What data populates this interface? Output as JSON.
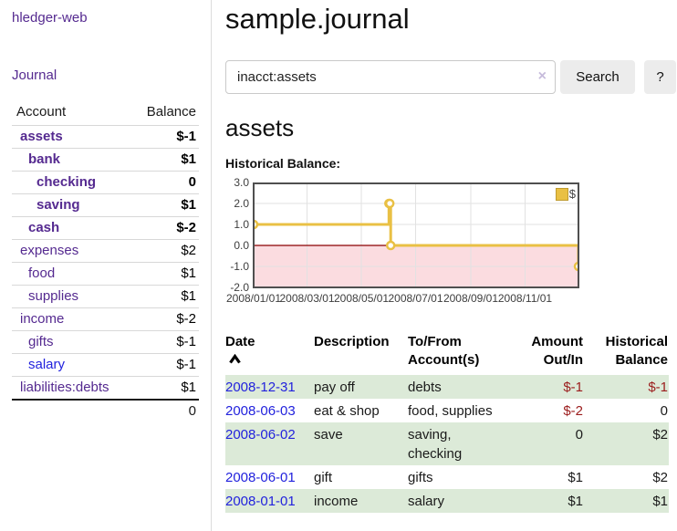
{
  "app": {
    "brand": "hledger-web"
  },
  "sidebar": {
    "nav": {
      "journal": "Journal"
    },
    "columns": {
      "account": "Account",
      "balance": "Balance"
    },
    "accounts": [
      {
        "name": "assets",
        "balance": "$-1",
        "neg": "strong"
      },
      {
        "name": "bank",
        "balance": "$1",
        "neg": ""
      },
      {
        "name": "checking",
        "balance": "0",
        "neg": ""
      },
      {
        "name": "saving",
        "balance": "$1",
        "neg": ""
      },
      {
        "name": "cash",
        "balance": "$-2",
        "neg": "strong"
      },
      {
        "name": "expenses",
        "balance": "$2",
        "neg": ""
      },
      {
        "name": "food",
        "balance": "$1",
        "neg": ""
      },
      {
        "name": "supplies",
        "balance": "$1",
        "neg": ""
      },
      {
        "name": "income",
        "balance": "$-2",
        "neg": "soft"
      },
      {
        "name": "gifts",
        "balance": "$-1",
        "neg": "soft"
      },
      {
        "name": "salary",
        "balance": "$-1",
        "neg": "soft"
      },
      {
        "name": "liabilities:debts",
        "balance": "$1",
        "neg": ""
      }
    ],
    "total": "0"
  },
  "header": {
    "title": "sample.journal"
  },
  "search": {
    "value": "inacct:assets",
    "clear_icon": "×",
    "button_label": "Search",
    "help_label": "?"
  },
  "account_page": {
    "heading": "assets",
    "chart_title": "Historical Balance:"
  },
  "chart_data": {
    "type": "line",
    "title": "Historical Balance:",
    "legend": [
      {
        "label": "$",
        "color": "#e9c044"
      }
    ],
    "legend_position": "top-right",
    "grid": true,
    "y_ticks": [
      "3.0",
      "2.0",
      "1.0",
      "0.0",
      "-1.0",
      "-2.0"
    ],
    "ylim": [
      -2,
      3
    ],
    "x_ticks": [
      "2008/01/01",
      "2008/03/01",
      "2008/05/01",
      "2008/07/01",
      "2008/09/01",
      "2008/11/01"
    ],
    "x_tick_days": [
      0,
      60,
      121,
      182,
      244,
      305
    ],
    "x_range_days": 365,
    "negative_fill": "#fbdce0",
    "zero_line_color": "#8b0000",
    "series": [
      {
        "name": "$",
        "color": "#e9c044",
        "step": true,
        "points": [
          {
            "date": "2008-01-01",
            "day": 0,
            "value": 1
          },
          {
            "date": "2008-06-01",
            "day": 152,
            "value": 2
          },
          {
            "date": "2008-06-02",
            "day": 153,
            "value": 2
          },
          {
            "date": "2008-06-03",
            "day": 154,
            "value": 0
          },
          {
            "date": "2008-12-31",
            "day": 365,
            "value": -1
          }
        ]
      }
    ]
  },
  "register": {
    "columns": [
      {
        "l1": "Date",
        "l2": ""
      },
      {
        "l1": "Description",
        "l2": ""
      },
      {
        "l1": "To/From",
        "l2": "Account(s)"
      },
      {
        "l1": "Amount",
        "l2": "Out/In"
      },
      {
        "l1": "Historical",
        "l2": "Balance"
      }
    ],
    "rows": [
      {
        "date": "2008-12-31",
        "description": "pay off",
        "accounts": "debts",
        "amount": "$-1",
        "amount_neg": "strong",
        "balance": "$-1",
        "balance_neg": "strong"
      },
      {
        "date": "2008-06-03",
        "description": "eat & shop",
        "accounts": "food, supplies",
        "amount": "$-2",
        "amount_neg": "strong",
        "balance": "0",
        "balance_neg": ""
      },
      {
        "date": "2008-06-02",
        "description": "save",
        "accounts": "saving,\nchecking",
        "amount": "0",
        "amount_neg": "",
        "balance": "$2",
        "balance_neg": ""
      },
      {
        "date": "2008-06-01",
        "description": "gift",
        "accounts": "gifts",
        "amount": "$1",
        "amount_neg": "",
        "balance": "$2",
        "balance_neg": ""
      },
      {
        "date": "2008-01-01",
        "description": "income",
        "accounts": "salary",
        "amount": "$1",
        "amount_neg": "",
        "balance": "$1",
        "balance_neg": ""
      }
    ]
  },
  "colors": {
    "accent_purple": "#552a90",
    "link_blue": "#2222dd",
    "negative_strong": "#9b1c1c",
    "negative_soft": "#c08383",
    "row_green": "#dcead8",
    "chart_line": "#e9c044"
  }
}
